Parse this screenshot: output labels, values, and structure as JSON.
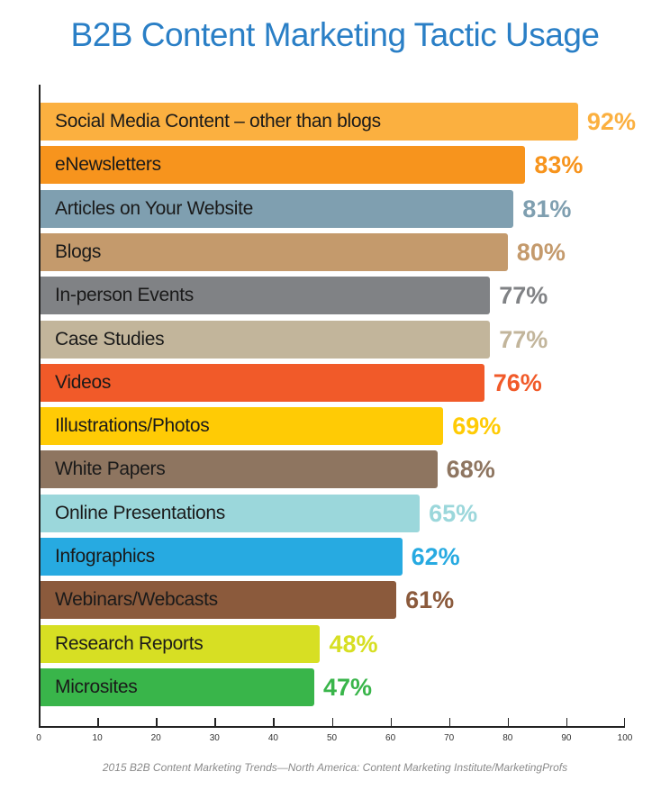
{
  "title": "B2B Content Marketing Tactic Usage",
  "source": "2015 B2B Content Marketing Trends—North America: Content Marketing Institute/MarketingProfs",
  "chart_data": {
    "type": "bar",
    "orientation": "horizontal",
    "title": "B2B Content Marketing Tactic Usage",
    "xlabel": "",
    "ylabel": "",
    "xlim": [
      0,
      100
    ],
    "x_ticks": [
      0,
      10,
      20,
      30,
      40,
      50,
      60,
      70,
      80,
      90,
      100
    ],
    "grid": false,
    "legend": "none",
    "categories": [
      "Social Media Content – other than blogs",
      "eNewsletters",
      "Articles on Your Website",
      "Blogs",
      "In-person Events",
      "Case Studies",
      "Videos",
      "Illustrations/Photos",
      "White Papers",
      "Online Presentations",
      "Infographics",
      "Webinars/Webcasts",
      "Research Reports",
      "Microsites"
    ],
    "values": [
      92,
      83,
      81,
      80,
      77,
      77,
      76,
      69,
      68,
      65,
      62,
      61,
      48,
      47
    ],
    "value_labels": [
      "92%",
      "83%",
      "81%",
      "80%",
      "77%",
      "77%",
      "76%",
      "69%",
      "68%",
      "65%",
      "62%",
      "61%",
      "48%",
      "47%"
    ],
    "colors": [
      "#fbb040",
      "#f7941d",
      "#7f9fb0",
      "#c49a6c",
      "#808285",
      "#c2b59b",
      "#f15a29",
      "#ffcb05",
      "#8e7560",
      "#9bd7db",
      "#27aae1",
      "#8b5a3c",
      "#d7df23",
      "#39b54a"
    ],
    "source": "2015 B2B Content Marketing Trends—North America: Content Marketing Institute/MarketingProfs"
  }
}
